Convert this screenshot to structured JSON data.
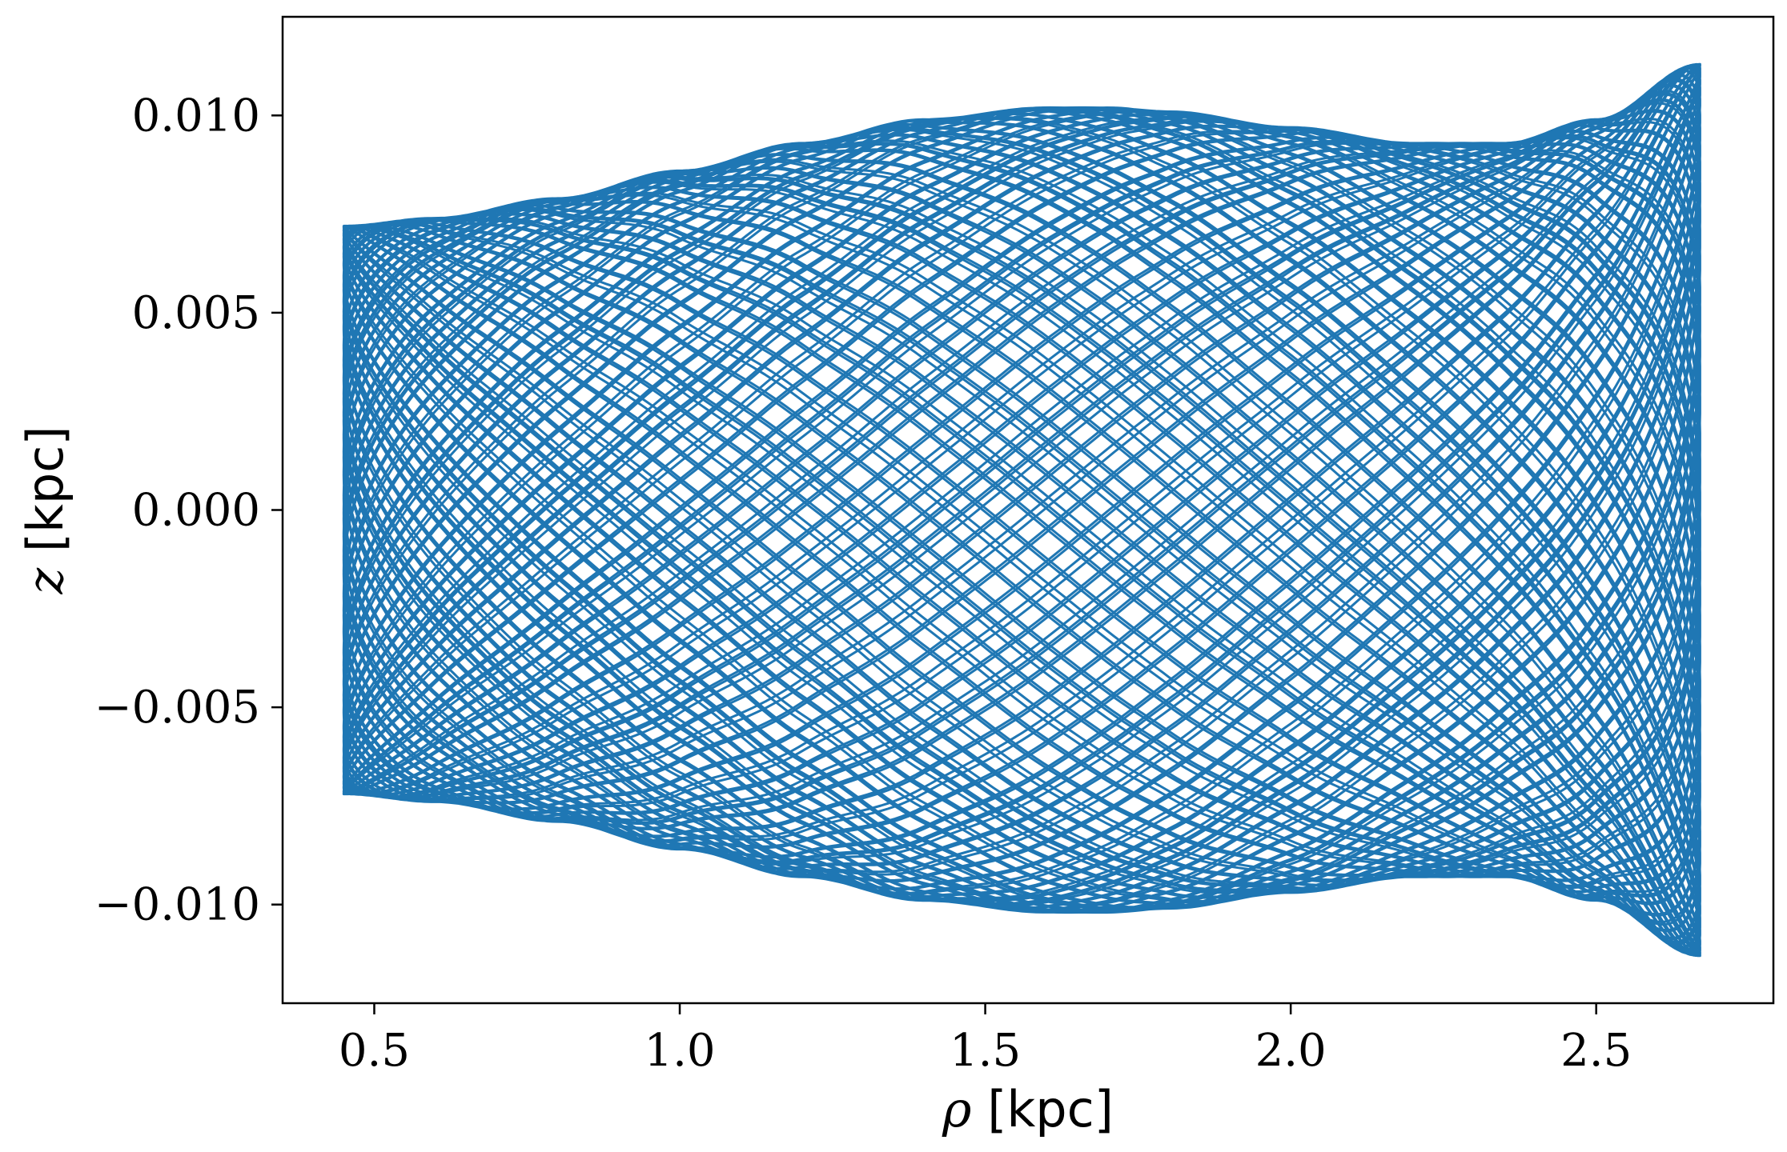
{
  "chart_data": {
    "type": "line",
    "title": "",
    "xlabel_symbol": "ρ",
    "xlabel_unit": " [kpc]",
    "ylabel_symbol": "z",
    "ylabel_unit": " [kpc]",
    "xlim": [
      0.35,
      2.79
    ],
    "ylim": [
      -0.0125,
      0.0125
    ],
    "xticks": [
      0.5,
      1.0,
      1.5,
      2.0,
      2.5
    ],
    "xtick_labels": [
      "0.5",
      "1.0",
      "1.5",
      "2.0",
      "2.5"
    ],
    "yticks": [
      0.01,
      0.005,
      0.0,
      -0.005,
      -0.01
    ],
    "ytick_labels": [
      "0.010",
      "0.005",
      "0.000",
      "−0.005",
      "−0.010"
    ],
    "grid": false,
    "legend": "none",
    "series": [
      {
        "kind": "orbit",
        "color": "#1f77b4",
        "rho_min": 0.45,
        "rho_max": 2.67,
        "envelope_rho": [
          0.45,
          0.6,
          0.8,
          1.0,
          1.2,
          1.4,
          1.6,
          1.7,
          1.8,
          2.0,
          2.2,
          2.35,
          2.5,
          2.67
        ],
        "envelope_z": [
          0.0072,
          0.0074,
          0.0079,
          0.0086,
          0.0093,
          0.0099,
          0.0102,
          0.0102,
          0.0101,
          0.0097,
          0.0093,
          0.0093,
          0.0099,
          0.0113
        ]
      }
    ]
  }
}
